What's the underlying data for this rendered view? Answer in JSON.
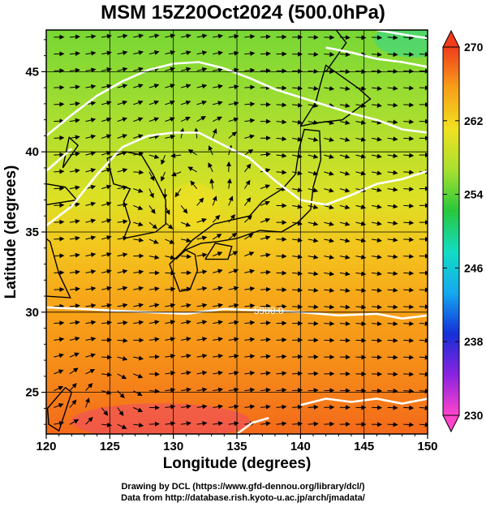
{
  "title": "MSM 15Z20Oct2024 (500.0hPa)",
  "credits": {
    "line1": "Drawing by DCL (https://www.gfd-dennou.org/library/dcl/)",
    "line2": "Data from http://database.rish.kyoto-u.ac.jp/arch/jmadata/"
  },
  "chart_data": {
    "type": "map",
    "xlabel": "Longitude (degrees)",
    "ylabel": "Latitude  (degrees)",
    "xlim": [
      120,
      150
    ],
    "ylim": [
      22.4,
      47.6
    ],
    "x_ticks": [
      120,
      125,
      130,
      135,
      140,
      145,
      150
    ],
    "y_ticks": [
      25,
      30,
      35,
      40,
      45
    ],
    "grid": true,
    "colorbar": {
      "min": 230,
      "max": 270,
      "ticks": [
        230,
        238,
        246,
        254,
        262,
        270
      ],
      "placement": "right",
      "colors": [
        "#ff44cc",
        "#8a22e0",
        "#1430d8",
        "#14aaf0",
        "#12dcc4",
        "#28c83c",
        "#a8e030",
        "#f0e020",
        "#f8a018",
        "#f03c1c"
      ]
    },
    "contour_labels": [
      {
        "text": "5900.0",
        "lon": 137.5,
        "lat": 30.1
      }
    ],
    "contours": [
      {
        "name": "5900",
        "points": [
          [
            120,
            30.3
          ],
          [
            123,
            30.2
          ],
          [
            125,
            30.1
          ],
          [
            128,
            30.0
          ],
          [
            131,
            29.9
          ],
          [
            134,
            30.2
          ],
          [
            137,
            30.1
          ],
          [
            140,
            30.0
          ],
          [
            143,
            29.8
          ],
          [
            146,
            29.9
          ],
          [
            148,
            29.6
          ],
          [
            150,
            29.8
          ]
        ]
      },
      {
        "name": "5840",
        "points": [
          [
            120,
            35.4
          ],
          [
            122,
            36.6
          ],
          [
            124,
            38.6
          ],
          [
            126,
            40.3
          ],
          [
            128,
            41.0
          ],
          [
            130,
            41.2
          ],
          [
            132,
            41.2
          ],
          [
            134,
            40.4
          ],
          [
            136,
            39.6
          ],
          [
            138,
            38.2
          ],
          [
            140,
            37.0
          ],
          [
            142,
            36.7
          ],
          [
            144,
            37.3
          ],
          [
            146,
            38.0
          ],
          [
            148,
            38.3
          ],
          [
            150,
            38.8
          ]
        ]
      },
      {
        "name": "5760",
        "points": [
          [
            120,
            41.0
          ],
          [
            122,
            42.3
          ],
          [
            124,
            43.5
          ],
          [
            126,
            44.4
          ],
          [
            128,
            45.1
          ],
          [
            130,
            45.5
          ],
          [
            132,
            45.6
          ],
          [
            134,
            45.2
          ],
          [
            136,
            44.6
          ],
          [
            138,
            43.9
          ],
          [
            140,
            43.4
          ],
          [
            142,
            42.9
          ],
          [
            144,
            42.4
          ],
          [
            146,
            42.0
          ],
          [
            148,
            41.4
          ],
          [
            150,
            41.2
          ]
        ]
      },
      {
        "name": "5640",
        "points": [
          [
            146,
            47.6
          ],
          [
            147.5,
            47.4
          ],
          [
            149,
            47.2
          ],
          [
            150,
            47.1
          ]
        ]
      },
      {
        "name": "5950",
        "points": [
          [
            140,
            24.2
          ],
          [
            142,
            24.6
          ],
          [
            144,
            24.4
          ],
          [
            146,
            24.6
          ],
          [
            148,
            24.3
          ],
          [
            150,
            24.6
          ]
        ]
      },
      {
        "name": "5950b",
        "points": [
          [
            135,
            22.4
          ],
          [
            136.2,
            23.1
          ],
          [
            137.5,
            23.4
          ]
        ]
      },
      {
        "name": "5700a",
        "points": [
          [
            142,
            46.5
          ],
          [
            144,
            46.2
          ],
          [
            146,
            45.8
          ],
          [
            148,
            45.6
          ],
          [
            150,
            45.3
          ]
        ]
      },
      {
        "name": "5880",
        "points": [
          [
            120,
            38.8
          ],
          [
            121,
            39.5
          ],
          [
            122,
            40.2
          ]
        ]
      }
    ],
    "temperature_field": [
      {
        "lat": 47.6,
        "value": 255
      },
      {
        "lat": 44,
        "value": 256
      },
      {
        "lat": 40,
        "value": 258
      },
      {
        "lat": 37,
        "value": 260
      },
      {
        "lat": 34,
        "value": 263
      },
      {
        "lat": 31,
        "value": 265
      },
      {
        "lat": 28,
        "value": 266
      },
      {
        "lat": 25,
        "value": 267
      },
      {
        "lat": 22.4,
        "value": 268
      }
    ]
  }
}
